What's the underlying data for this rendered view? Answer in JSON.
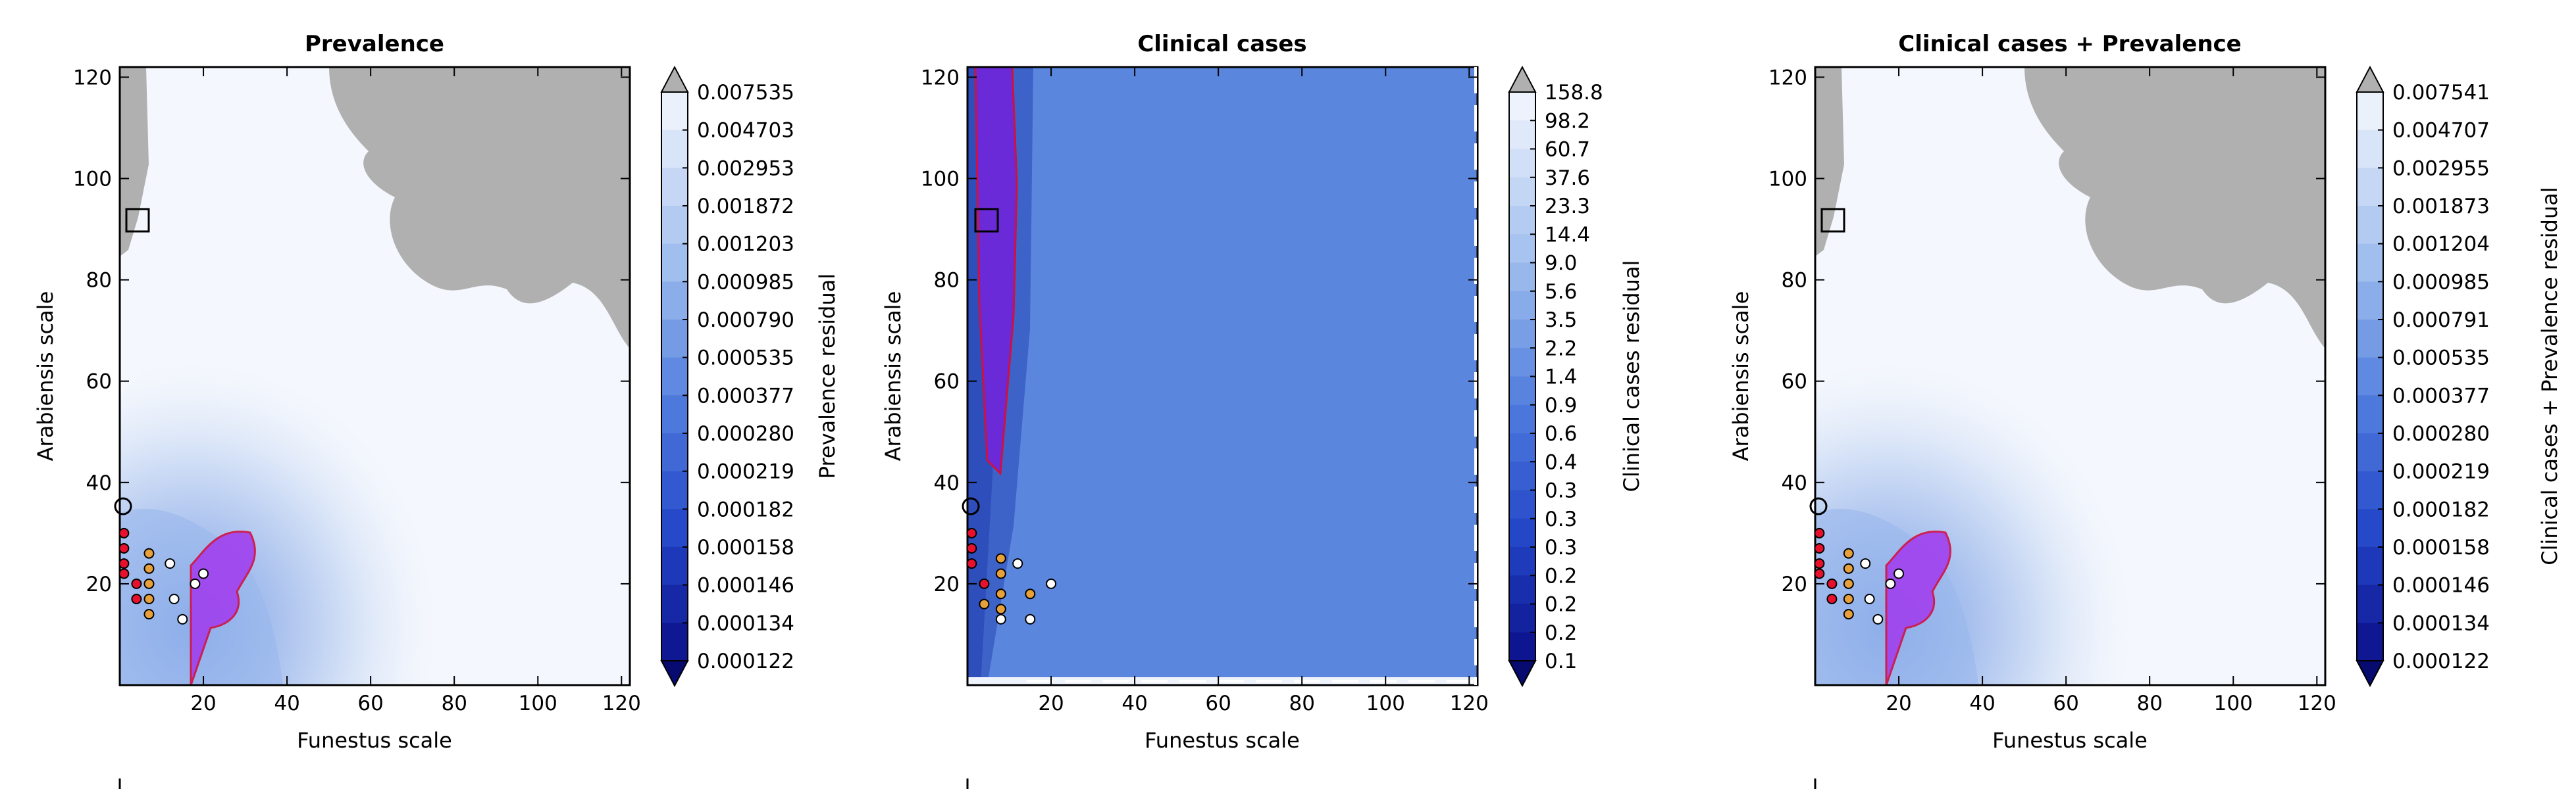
{
  "chart_data": [
    {
      "type": "heatmap",
      "title": "Prevalence",
      "xlabel": "Funestus scale",
      "ylabel": "Arabiensis scale",
      "xlim": [
        0,
        122
      ],
      "ylim": [
        0,
        122
      ],
      "xticks": [
        20,
        40,
        60,
        80,
        100,
        120
      ],
      "yticks": [
        20,
        40,
        60,
        80,
        100,
        120
      ],
      "colorbar": {
        "label": "Prevalence residual",
        "levels": [
          "0.007535",
          "0.004703",
          "0.002953",
          "0.001872",
          "0.001203",
          "0.000985",
          "0.000790",
          "0.000535",
          "0.000377",
          "0.000280",
          "0.000219",
          "0.000182",
          "0.000158",
          "0.000146",
          "0.000134",
          "0.000122"
        ]
      },
      "square_marker": [
        4,
        92
      ],
      "circle_marker": [
        1,
        35
      ],
      "points": [
        {
          "x": 1,
          "y": 30,
          "c": "red"
        },
        {
          "x": 1,
          "y": 27,
          "c": "red"
        },
        {
          "x": 1,
          "y": 24,
          "c": "red"
        },
        {
          "x": 1,
          "y": 22,
          "c": "red"
        },
        {
          "x": 4,
          "y": 20,
          "c": "red"
        },
        {
          "x": 4,
          "y": 17,
          "c": "red"
        },
        {
          "x": 7,
          "y": 26,
          "c": "orange"
        },
        {
          "x": 7,
          "y": 23,
          "c": "orange"
        },
        {
          "x": 7,
          "y": 20,
          "c": "orange"
        },
        {
          "x": 7,
          "y": 17,
          "c": "orange"
        },
        {
          "x": 7,
          "y": 14,
          "c": "orange"
        },
        {
          "x": 12,
          "y": 24,
          "c": "white"
        },
        {
          "x": 20,
          "y": 22,
          "c": "white"
        },
        {
          "x": 18,
          "y": 20,
          "c": "white"
        },
        {
          "x": 13,
          "y": 17,
          "c": "white"
        },
        {
          "x": 15,
          "y": 13,
          "c": "white"
        }
      ]
    },
    {
      "type": "heatmap",
      "title": "Clinical cases",
      "xlabel": "Funestus scale",
      "ylabel": "Arabiensis scale",
      "xlim": [
        0,
        122
      ],
      "ylim": [
        0,
        122
      ],
      "xticks": [
        20,
        40,
        60,
        80,
        100,
        120
      ],
      "yticks": [
        20,
        40,
        60,
        80,
        100,
        120
      ],
      "colorbar": {
        "label": "Clinical cases residual",
        "levels": [
          "158.8",
          "98.2",
          "60.7",
          "37.6",
          "23.3",
          "14.4",
          "9.0",
          "5.6",
          "3.5",
          "2.2",
          "1.4",
          "0.9",
          "0.6",
          "0.4",
          "0.3",
          "0.3",
          "0.3",
          "0.2",
          "0.2",
          "0.2",
          "0.1"
        ]
      },
      "square_marker": [
        4,
        92
      ],
      "circle_marker": [
        1,
        35
      ],
      "points": [
        {
          "x": 1,
          "y": 30,
          "c": "red"
        },
        {
          "x": 1,
          "y": 27,
          "c": "red"
        },
        {
          "x": 1,
          "y": 24,
          "c": "red"
        },
        {
          "x": 4,
          "y": 20,
          "c": "red"
        },
        {
          "x": 4,
          "y": 16,
          "c": "orange"
        },
        {
          "x": 8,
          "y": 25,
          "c": "orange"
        },
        {
          "x": 8,
          "y": 22,
          "c": "orange"
        },
        {
          "x": 8,
          "y": 18,
          "c": "orange"
        },
        {
          "x": 8,
          "y": 15,
          "c": "orange"
        },
        {
          "x": 12,
          "y": 24,
          "c": "white"
        },
        {
          "x": 20,
          "y": 20,
          "c": "white"
        },
        {
          "x": 15,
          "y": 18,
          "c": "orange"
        },
        {
          "x": 8,
          "y": 13,
          "c": "white"
        },
        {
          "x": 15,
          "y": 13,
          "c": "white"
        }
      ]
    },
    {
      "type": "heatmap",
      "title": "Clinical cases + Prevalence",
      "xlabel": "Funestus scale",
      "ylabel": "Arabiensis scale",
      "xlim": [
        0,
        122
      ],
      "ylim": [
        0,
        122
      ],
      "xticks": [
        20,
        40,
        60,
        80,
        100,
        120
      ],
      "yticks": [
        20,
        40,
        60,
        80,
        100,
        120
      ],
      "colorbar": {
        "label": "Clinical cases + Prevalence residual",
        "levels": [
          "0.007541",
          "0.004707",
          "0.002955",
          "0.001873",
          "0.001204",
          "0.000985",
          "0.000791",
          "0.000535",
          "0.000377",
          "0.000280",
          "0.000219",
          "0.000182",
          "0.000158",
          "0.000146",
          "0.000134",
          "0.000122"
        ]
      },
      "square_marker": [
        4,
        92
      ],
      "circle_marker": [
        1,
        35
      ],
      "points": [
        {
          "x": 1,
          "y": 30,
          "c": "red"
        },
        {
          "x": 1,
          "y": 27,
          "c": "red"
        },
        {
          "x": 1,
          "y": 24,
          "c": "red"
        },
        {
          "x": 1,
          "y": 22,
          "c": "red"
        },
        {
          "x": 4,
          "y": 20,
          "c": "red"
        },
        {
          "x": 4,
          "y": 17,
          "c": "red"
        },
        {
          "x": 8,
          "y": 26,
          "c": "orange"
        },
        {
          "x": 8,
          "y": 23,
          "c": "orange"
        },
        {
          "x": 8,
          "y": 20,
          "c": "orange"
        },
        {
          "x": 8,
          "y": 17,
          "c": "orange"
        },
        {
          "x": 8,
          "y": 14,
          "c": "orange"
        },
        {
          "x": 12,
          "y": 24,
          "c": "white"
        },
        {
          "x": 20,
          "y": 22,
          "c": "white"
        },
        {
          "x": 18,
          "y": 20,
          "c": "white"
        },
        {
          "x": 13,
          "y": 17,
          "c": "white"
        },
        {
          "x": 15,
          "y": 13,
          "c": "white"
        }
      ]
    }
  ]
}
